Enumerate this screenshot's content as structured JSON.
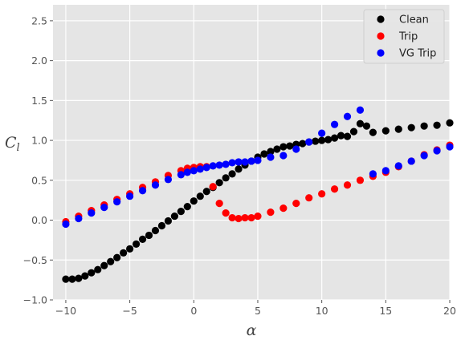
{
  "chart_data": {
    "type": "scatter",
    "xlabel": "α",
    "ylabel": "C_l",
    "xlim": [
      -11,
      20
    ],
    "ylim": [
      -1.0,
      2.7
    ],
    "xticks": [
      "−10",
      "−5",
      "0",
      "5",
      "10",
      "15",
      "20"
    ],
    "xtick_values": [
      -10,
      -5,
      0,
      5,
      10,
      15,
      20
    ],
    "yticks": [
      "−1.0",
      "−0.5",
      "0.0",
      "0.5",
      "1.0",
      "1.5",
      "2.0",
      "2.5"
    ],
    "ytick_values": [
      -1.0,
      -0.5,
      0.0,
      0.5,
      1.0,
      1.5,
      2.0,
      2.5
    ],
    "grid": true,
    "legend_position": "top-right",
    "series": [
      {
        "name": "Clean",
        "color": "#000000",
        "points": [
          [
            -10,
            -0.74
          ],
          [
            -9.5,
            -0.74
          ],
          [
            -9,
            -0.73
          ],
          [
            -8.5,
            -0.7
          ],
          [
            -8,
            -0.66
          ],
          [
            -7.5,
            -0.62
          ],
          [
            -7,
            -0.57
          ],
          [
            -6.5,
            -0.52
          ],
          [
            -6,
            -0.47
          ],
          [
            -5.5,
            -0.41
          ],
          [
            -5,
            -0.36
          ],
          [
            -4.5,
            -0.3
          ],
          [
            -4,
            -0.24
          ],
          [
            -3.5,
            -0.19
          ],
          [
            -3,
            -0.13
          ],
          [
            -2.5,
            -0.07
          ],
          [
            -2,
            -0.01
          ],
          [
            -1.5,
            0.05
          ],
          [
            -1,
            0.11
          ],
          [
            -0.5,
            0.17
          ],
          [
            0,
            0.24
          ],
          [
            0.5,
            0.3
          ],
          [
            1,
            0.36
          ],
          [
            1.5,
            0.41
          ],
          [
            2,
            0.47
          ],
          [
            2.5,
            0.53
          ],
          [
            3,
            0.58
          ],
          [
            3.5,
            0.64
          ],
          [
            4,
            0.69
          ],
          [
            4.5,
            0.74
          ],
          [
            5,
            0.79
          ],
          [
            5.5,
            0.83
          ],
          [
            6,
            0.86
          ],
          [
            6.5,
            0.89
          ],
          [
            7,
            0.92
          ],
          [
            7.5,
            0.93
          ],
          [
            8,
            0.95
          ],
          [
            8.5,
            0.96
          ],
          [
            9,
            0.98
          ],
          [
            9.5,
            0.99
          ],
          [
            10,
            1.0
          ],
          [
            10.5,
            1.01
          ],
          [
            11,
            1.03
          ],
          [
            11.5,
            1.06
          ],
          [
            12,
            1.05
          ],
          [
            12.5,
            1.11
          ],
          [
            13,
            1.21
          ],
          [
            13.5,
            1.18
          ],
          [
            14,
            1.1
          ],
          [
            15,
            1.12
          ],
          [
            16,
            1.14
          ],
          [
            17,
            1.16
          ],
          [
            18,
            1.18
          ],
          [
            19,
            1.19
          ],
          [
            20,
            1.22
          ]
        ]
      },
      {
        "name": "Trip",
        "color": "#ff0000",
        "points": [
          [
            -10,
            -0.02
          ],
          [
            -9,
            0.05
          ],
          [
            -8,
            0.12
          ],
          [
            -7,
            0.19
          ],
          [
            -6,
            0.26
          ],
          [
            -5,
            0.33
          ],
          [
            -4,
            0.41
          ],
          [
            -3,
            0.48
          ],
          [
            -2,
            0.56
          ],
          [
            -1,
            0.62
          ],
          [
            -0.5,
            0.65
          ],
          [
            0,
            0.66
          ],
          [
            0.5,
            0.67
          ],
          [
            1,
            0.67
          ],
          [
            1.5,
            0.42
          ],
          [
            2,
            0.21
          ],
          [
            2.5,
            0.09
          ],
          [
            3,
            0.03
          ],
          [
            3.5,
            0.02
          ],
          [
            4,
            0.03
          ],
          [
            4.5,
            0.03
          ],
          [
            5,
            0.05
          ],
          [
            6,
            0.1
          ],
          [
            7,
            0.15
          ],
          [
            8,
            0.21
          ],
          [
            9,
            0.28
          ],
          [
            10,
            0.33
          ],
          [
            11,
            0.39
          ],
          [
            12,
            0.44
          ],
          [
            13,
            0.5
          ],
          [
            14,
            0.55
          ],
          [
            15,
            0.6
          ],
          [
            16,
            0.67
          ],
          [
            17,
            0.74
          ],
          [
            18,
            0.82
          ],
          [
            19,
            0.88
          ],
          [
            20,
            0.94
          ]
        ]
      },
      {
        "name": "VG Trip",
        "color": "#0000ff",
        "points": [
          [
            -10,
            -0.05
          ],
          [
            -9,
            0.02
          ],
          [
            -8,
            0.09
          ],
          [
            -7,
            0.16
          ],
          [
            -6,
            0.23
          ],
          [
            -5,
            0.3
          ],
          [
            -4,
            0.37
          ],
          [
            -3,
            0.44
          ],
          [
            -2,
            0.51
          ],
          [
            -1,
            0.57
          ],
          [
            -0.5,
            0.6
          ],
          [
            0,
            0.62
          ],
          [
            0.5,
            0.64
          ],
          [
            1,
            0.66
          ],
          [
            1.5,
            0.68
          ],
          [
            2,
            0.69
          ],
          [
            2.5,
            0.7
          ],
          [
            3,
            0.72
          ],
          [
            3.5,
            0.73
          ],
          [
            4,
            0.73
          ],
          [
            4.5,
            0.74
          ],
          [
            5,
            0.75
          ],
          [
            6,
            0.79
          ],
          [
            7,
            0.81
          ],
          [
            8,
            0.89
          ],
          [
            9,
            0.98
          ],
          [
            10,
            1.09
          ],
          [
            11,
            1.2
          ],
          [
            12,
            1.3
          ],
          [
            13,
            1.38
          ],
          [
            14,
            0.58
          ],
          [
            15,
            0.62
          ],
          [
            16,
            0.68
          ],
          [
            17,
            0.74
          ],
          [
            18,
            0.81
          ],
          [
            19,
            0.87
          ],
          [
            20,
            0.92
          ]
        ]
      }
    ]
  }
}
